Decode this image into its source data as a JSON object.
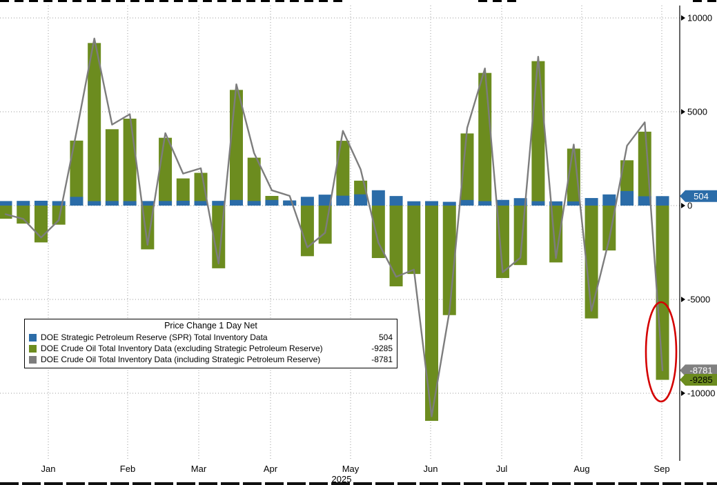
{
  "legend": {
    "title": "Price Change 1 Day Net",
    "rows": [
      {
        "label": "DOE Strategic Petroleum Reserve (SPR) Total Inventory Data",
        "value": "504"
      },
      {
        "label": "DOE Crude Oil Total Inventory Data (excluding Strategic Petroleum Reserve)",
        "value": "-9285"
      },
      {
        "label": "DOE Crude Oil Total Inventory Data (including Strategic Petroleum Reserve)",
        "value": "-8781"
      }
    ]
  },
  "colors": {
    "spr_blue": "#2b6ca8",
    "crude_green": "#6c8c1f",
    "total_gray": "#7d7d7d",
    "annotation_red": "#d40000",
    "grid": "#9a9a9a"
  },
  "chart_data": {
    "type": "bar",
    "subtype": "weekly bars with overlaid line, values estimated from pixels",
    "n_weeks": 38,
    "x_tick_labels": [
      "Jan",
      "Feb",
      "Mar",
      "Apr",
      "May",
      "Jun",
      "Jul",
      "Aug",
      "Sep"
    ],
    "x_year_label": "2025",
    "y_ticks": [
      10000,
      5000,
      0,
      -5000,
      -10000
    ],
    "ylim": [
      -12600,
      10900
    ],
    "grid": "dotted horizontal at y ticks, dotted vertical at month starts",
    "legend_position": "boxed legend lower-left inside plot",
    "series": [
      {
        "name": "DOE Strategic Petroleum Reserve (SPR) Total Inventory Data",
        "type": "bar",
        "color": "#2b6ca8",
        "latest": 504,
        "values": [
          242,
          250,
          258,
          240,
          467,
          239,
          245,
          240,
          243,
          245,
          257,
          245,
          251,
          300,
          246,
          300,
          275,
          468,
          583,
          528,
          601,
          818,
          510,
          231,
          238,
          201,
          299,
          238,
          303,
          397,
          235,
          226,
          222,
          403,
          595,
          777,
          498,
          504
        ]
      },
      {
        "name": "DOE Crude Oil Total Inventory Data (excluding Strategic Petroleum Reserve)",
        "type": "bar",
        "color": "#6c8c1f",
        "latest": -9285,
        "values": [
          -700,
          -959,
          -1962,
          -1017,
          3463,
          8664,
          4070,
          4633,
          -2332,
          3614,
          1448,
          1745,
          -3341,
          6165,
          2553,
          515,
          244,
          -2696,
          -2032,
          3454,
          1328,
          -2795,
          -4304,
          -3644,
          -11473,
          -5836,
          3845,
          7070,
          -3859,
          -3169,
          7698,
          -3029,
          3036,
          -6014,
          -2392,
          2415,
          3939,
          -9285
        ]
      },
      {
        "name": "DOE Crude Oil Total Inventory Data (including Strategic Petroleum Reserve)",
        "type": "line",
        "color": "#7d7d7d",
        "latest": -8781,
        "values": [
          -458,
          -709,
          -1704,
          -777,
          3930,
          8903,
          4315,
          4873,
          -2089,
          3859,
          1705,
          1990,
          -3090,
          6465,
          2799,
          815,
          519,
          -2228,
          -1449,
          3982,
          1929,
          -1977,
          -3794,
          -3413,
          -11235,
          -5635,
          4144,
          7308,
          -3556,
          -2772,
          7933,
          -2803,
          3258,
          -5611,
          -1797,
          3192,
          4437,
          -8781
        ]
      }
    ],
    "last_value_badges": [
      {
        "value": "504",
        "bg": "#2b6ca8",
        "fg": "#ffffff",
        "at": 504
      },
      {
        "value": "-8781",
        "bg": "#808080",
        "fg": "#ffffff",
        "at": -8781
      },
      {
        "value": "-9285",
        "bg": "#6c8c1f",
        "fg": "#000000",
        "at": -9285
      }
    ],
    "annotations": {
      "red_ellipse": "hand-drawn red ellipse circling the final (Sep) bar at -9285"
    }
  }
}
